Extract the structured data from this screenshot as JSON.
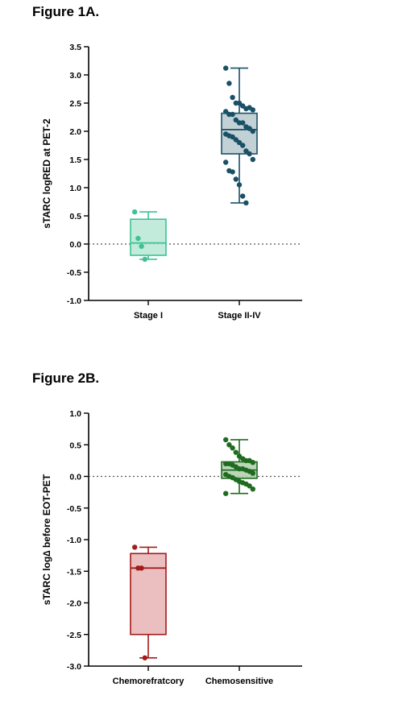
{
  "figures": [
    {
      "title": "Figure 1A."
    },
    {
      "title": "Figure 2B."
    }
  ],
  "chart_data": [
    {
      "type": "box",
      "title": "Figure 1A.",
      "ylabel": "sTARC logRED at PET-2",
      "xlabel": "",
      "ylim": [
        -1.0,
        3.5
      ],
      "yticks": [
        3.5,
        3.0,
        2.5,
        2.0,
        1.5,
        1.0,
        0.5,
        0.0,
        -0.5,
        -1.0
      ],
      "ytick_labels": [
        "3.5",
        "3.0",
        "2.5",
        "2.0",
        "1.5",
        "1.0",
        "0.5",
        "0.0",
        "-0.5",
        "-1.0"
      ],
      "reference_line": 0.0,
      "categories": [
        "Stage I",
        "Stage II-IV"
      ],
      "groups": [
        {
          "name": "Stage I",
          "color": "#3cc296",
          "fill": "#b9e8d6",
          "min": -0.27,
          "q1": -0.2,
          "median": 0.02,
          "q3": 0.44,
          "max": 0.57,
          "points": [
            0.57,
            0.1,
            -0.04,
            -0.27
          ]
        },
        {
          "name": "Stage II-IV",
          "color": "#1a5066",
          "fill": "#b7c9cf",
          "min": 0.73,
          "q1": 1.6,
          "median": 2.03,
          "q3": 2.32,
          "max": 3.12,
          "points": [
            3.12,
            2.85,
            2.6,
            2.5,
            2.5,
            2.45,
            2.4,
            2.42,
            2.38,
            2.35,
            2.3,
            2.3,
            2.2,
            2.15,
            2.15,
            2.08,
            2.05,
            2.0,
            1.95,
            1.92,
            1.9,
            1.85,
            1.8,
            1.75,
            1.65,
            1.6,
            1.5,
            1.45,
            1.3,
            1.28,
            1.15,
            1.05,
            0.85,
            0.73
          ]
        }
      ]
    },
    {
      "type": "box",
      "title": "Figure 2B.",
      "ylabel": "sTARC log∆ before EOT-PET",
      "xlabel": "",
      "ylim": [
        -3.0,
        1.0
      ],
      "yticks": [
        1.0,
        0.5,
        0.0,
        -0.5,
        -1.0,
        -1.5,
        -2.0,
        -2.5,
        -3.0
      ],
      "ytick_labels": [
        "1.0",
        "0.5",
        "0.0",
        "-0.5",
        "-1.0",
        "-1.5",
        "-2.0",
        "-2.5",
        "-3.0"
      ],
      "reference_line": 0.0,
      "categories": [
        "Chemorefratcory",
        "Chemosensitive"
      ],
      "groups": [
        {
          "name": "Chemorefratcory",
          "color": "#a31c1c",
          "fill": "#e7b4b4",
          "min": -2.87,
          "q1": -2.5,
          "median": -1.45,
          "q3": -1.22,
          "max": -1.12,
          "points": [
            -1.12,
            -1.45,
            -1.45,
            -2.87
          ]
        },
        {
          "name": "Chemosensitive",
          "color": "#1f6b1f",
          "fill": "#b0cfae",
          "min": -0.27,
          "q1": -0.03,
          "median": 0.1,
          "q3": 0.23,
          "max": 0.58,
          "points": [
            0.58,
            0.5,
            0.45,
            0.38,
            0.32,
            0.28,
            0.25,
            0.25,
            0.22,
            0.2,
            0.2,
            0.18,
            0.15,
            0.12,
            0.12,
            0.1,
            0.08,
            0.05,
            0.03,
            0.0,
            -0.02,
            -0.05,
            -0.08,
            -0.1,
            -0.12,
            -0.15,
            -0.2,
            -0.27
          ]
        }
      ]
    }
  ]
}
